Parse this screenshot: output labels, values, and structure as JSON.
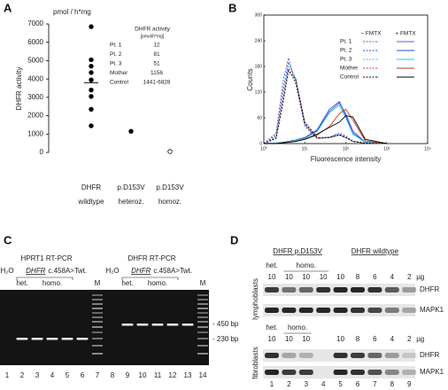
{
  "chart_data": [
    {
      "type": "dot",
      "label": "A",
      "unit": "pmol / h*mg",
      "ylabel": "DHFR activity",
      "categories": [
        "DHFR",
        "p.D153V",
        "p.D153V"
      ],
      "subcategories": [
        "wildtype",
        "heteroz.",
        "homoz."
      ],
      "points": [
        [
          6850,
          5050,
          4700,
          4350,
          3950,
          3400,
          3050,
          2350,
          1450
        ],
        [
          1150
        ],
        [
          50
        ]
      ],
      "open": [
        false,
        false,
        true
      ],
      "median": 3800,
      "color": "#000000",
      "ylim": [
        0,
        7000
      ],
      "yticks": [
        0,
        1000,
        2000,
        3000,
        4000,
        5000,
        6000,
        7000
      ],
      "table": {
        "title": "DHFR activity",
        "unit": "[pmol/h*mg]",
        "rows": [
          [
            "Pt. 1",
            12
          ],
          [
            "Pt. 2",
            81
          ],
          [
            "Pt. 3",
            51
          ],
          [
            "Mother",
            1156
          ],
          [
            "Control",
            "1441-6828"
          ]
        ]
      }
    },
    {
      "type": "line",
      "label": "B",
      "xlabel": "Fluorescence intensity",
      "ylabel": "Counts",
      "xscale": "log",
      "x": [
        1,
        2,
        3,
        4,
        6,
        10,
        20,
        40,
        70,
        100,
        150,
        300,
        1000
      ],
      "xlim": [
        1,
        10000
      ],
      "xticks": [
        {
          "value": 1,
          "label": "10⁰"
        },
        {
          "value": 10,
          "label": "10¹"
        },
        {
          "value": 100,
          "label": "10²"
        },
        {
          "value": 1000,
          "label": "10³"
        },
        {
          "value": 10000,
          "label": "10⁴"
        }
      ],
      "ylim": [
        0,
        300
      ],
      "yticks": [
        0,
        60,
        120,
        180,
        240,
        300
      ],
      "legend_headers": [
        "– FMTX",
        "+ FMTX"
      ],
      "series": [
        {
          "name": "Pt. 1",
          "color": "#6a5acd",
          "minus_fmtx": [
            0,
            25,
            150,
            200,
            140,
            40,
            12,
            15,
            25,
            18,
            6,
            1,
            0
          ],
          "plus_fmtx": [
            0,
            1,
            3,
            5,
            8,
            14,
            30,
            75,
            95,
            70,
            30,
            3,
            0
          ]
        },
        {
          "name": "Pt. 2",
          "color": "#1f4fd8",
          "minus_fmtx": [
            0,
            20,
            130,
            190,
            150,
            45,
            12,
            15,
            22,
            15,
            5,
            1,
            0
          ],
          "plus_fmtx": [
            0,
            1,
            3,
            5,
            8,
            14,
            32,
            80,
            98,
            65,
            25,
            3,
            0
          ]
        },
        {
          "name": "Pt. 3",
          "color": "#2ec4e6",
          "minus_fmtx": [
            0,
            18,
            120,
            180,
            150,
            48,
            12,
            14,
            20,
            14,
            5,
            1,
            0
          ],
          "plus_fmtx": [
            0,
            1,
            2,
            4,
            7,
            12,
            28,
            72,
            90,
            60,
            22,
            3,
            0
          ]
        },
        {
          "name": "Mother",
          "color": "#c0392b",
          "minus_fmtx": [
            0,
            15,
            110,
            175,
            140,
            45,
            12,
            14,
            20,
            14,
            5,
            1,
            0
          ],
          "plus_fmtx": [
            0,
            0,
            2,
            3,
            5,
            10,
            20,
            40,
            70,
            80,
            55,
            6,
            0
          ]
        },
        {
          "name": "Control",
          "color": "#000000",
          "minus_fmtx": [
            0,
            12,
            100,
            170,
            150,
            50,
            14,
            14,
            20,
            14,
            5,
            1,
            0
          ],
          "plus_fmtx": [
            0,
            0,
            2,
            3,
            5,
            10,
            22,
            38,
            50,
            65,
            62,
            10,
            0
          ]
        }
      ]
    }
  ],
  "panel_c": {
    "label": "C",
    "assays": [
      {
        "title": "HPRT1 RT-PCR",
        "water": "H₂O",
        "gene": "DHFR",
        "mutation": "c.458A>T",
        "wildtype": "wt.",
        "het": "het.",
        "homo": "homo.",
        "marker": "M"
      },
      {
        "title": "DHFR RT-PCR",
        "water": "H₂O",
        "gene": "DHFR",
        "mutation": "c.458A>T",
        "wildtype": "wt.",
        "het": "het.",
        "homo": "homo.",
        "marker": "M"
      }
    ],
    "size_markers": [
      "- 450 bp",
      "- 230 bp"
    ],
    "lanes": [
      1,
      2,
      3,
      4,
      5,
      6,
      7,
      8,
      9,
      10,
      11,
      12,
      13,
      14
    ]
  },
  "panel_d": {
    "label": "D",
    "groups": [
      "DHFR p.D153V",
      "DHFR wildtype"
    ],
    "cells": [
      {
        "name": "lymphoblasts",
        "het": "het.",
        "homo": "homo.",
        "amounts": [
          10,
          10,
          10,
          10,
          10,
          8,
          6,
          4,
          2
        ],
        "unit": "µg",
        "proteins": [
          "DHFR",
          "MAPK1"
        ]
      },
      {
        "name": "fibroblasts",
        "het": "het.",
        "homo": "homo.",
        "amounts": [
          10,
          10,
          10,
          null,
          10,
          8,
          6,
          4,
          2
        ],
        "unit": "µg",
        "proteins": [
          "DHFR",
          "MAPK1"
        ]
      }
    ],
    "lanes": [
      1,
      2,
      3,
      4,
      5,
      6,
      7,
      8,
      9
    ]
  }
}
